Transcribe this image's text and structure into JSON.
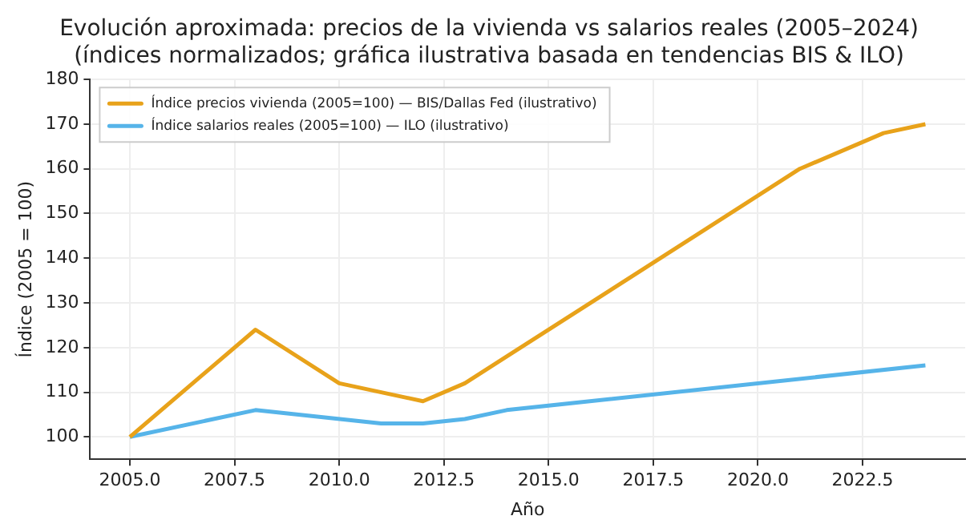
{
  "chart_data": {
    "type": "line",
    "title": "Evolución aproximada: precios de la vivienda vs salarios reales (2005–2024)\n(índices normalizados; gráfica ilustrativa basada en tendencias BIS & ILO)",
    "xlabel": "Año",
    "ylabel": "Índice (2005 = 100)",
    "x": [
      2005,
      2008,
      2010,
      2012,
      2013,
      2014,
      2021,
      2023,
      2024
    ],
    "series": [
      {
        "name": "Índice precios vivienda (2005=100) — BIS/Dallas Fed (ilustrativo)",
        "color": "#e8a21a",
        "values": [
          100,
          124,
          112,
          108,
          112,
          118,
          160,
          168,
          170
        ]
      },
      {
        "name": "Índice salarios reales (2005=100) — ILO (ilustrativo)",
        "color": "#56b4e9",
        "x": [
          2005,
          2008,
          2011,
          2012,
          2013,
          2014,
          2024
        ],
        "values": [
          100,
          106,
          103,
          103,
          104,
          106,
          116
        ]
      }
    ],
    "xlim": [
      2004.05,
      2024.95
    ],
    "xticks": [
      {
        "value": 2005,
        "label": "2005.0"
      },
      {
        "value": 2007.5,
        "label": "2007.5"
      },
      {
        "value": 2010,
        "label": "2010.0"
      },
      {
        "value": 2012.5,
        "label": "2012.5"
      },
      {
        "value": 2015,
        "label": "2015.0"
      },
      {
        "value": 2017.5,
        "label": "2017.5"
      },
      {
        "value": 2020,
        "label": "2020.0"
      },
      {
        "value": 2022.5,
        "label": "2022.5"
      }
    ],
    "ylim": [
      95,
      180
    ],
    "yticks": [
      100,
      110,
      120,
      130,
      140,
      150,
      160,
      170,
      180
    ],
    "grid": true,
    "legend": "top left",
    "marker": "none",
    "line_style": "solid"
  }
}
